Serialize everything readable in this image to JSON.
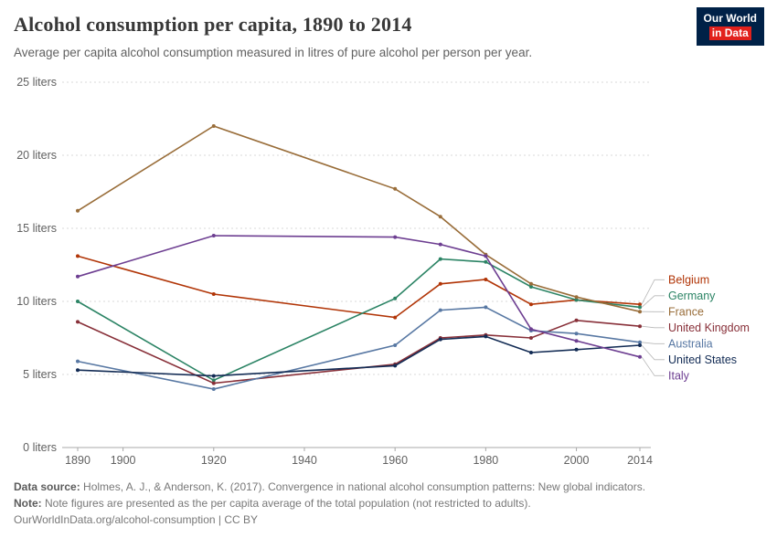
{
  "header": {
    "title": "Alcohol consumption per capita, 1890 to 2014",
    "subtitle": "Average per capita alcohol consumption measured in litres of pure alcohol per person per year."
  },
  "logo": {
    "line1": "Our World",
    "line2": "in Data",
    "bg_color": "#002147",
    "accent_color": "#E2211C"
  },
  "chart_data": {
    "type": "line",
    "xlabel": "",
    "ylabel": "liters",
    "xlim": [
      1890,
      2014
    ],
    "ylim": [
      0,
      25
    ],
    "grid": "dashed-horizontal",
    "legend_position": "right",
    "x_ticks": [
      1890,
      1900,
      1920,
      1940,
      1960,
      1980,
      2000,
      2014
    ],
    "y_ticks": [
      {
        "value": 0,
        "label": "0 liters"
      },
      {
        "value": 5,
        "label": "5 liters"
      },
      {
        "value": 10,
        "label": "10 liters"
      },
      {
        "value": 15,
        "label": "15 liters"
      },
      {
        "value": 20,
        "label": "20 liters"
      },
      {
        "value": 25,
        "label": "25 liters"
      }
    ],
    "years": [
      1890,
      1920,
      1960,
      1970,
      1980,
      1990,
      2000,
      2014
    ],
    "series": [
      {
        "name": "Belgium",
        "color": "#B13507",
        "values": [
          13.1,
          10.5,
          8.9,
          11.2,
          11.5,
          9.8,
          10.1,
          9.8
        ]
      },
      {
        "name": "Germany",
        "color": "#2C8465",
        "values": [
          10.0,
          4.6,
          10.2,
          12.9,
          12.7,
          11.0,
          10.1,
          9.6
        ]
      },
      {
        "name": "France",
        "color": "#996D39",
        "values": [
          16.2,
          22.0,
          17.7,
          15.8,
          13.2,
          11.2,
          10.3,
          9.3
        ]
      },
      {
        "name": "United Kingdom",
        "color": "#883039",
        "values": [
          8.6,
          4.4,
          5.7,
          7.5,
          7.7,
          7.5,
          8.7,
          8.3
        ]
      },
      {
        "name": "Australia",
        "color": "#5878A3",
        "values": [
          5.9,
          4.0,
          7.0,
          9.4,
          9.6,
          8.0,
          7.8,
          7.2
        ]
      },
      {
        "name": "United States",
        "color": "#122B54",
        "values": [
          5.3,
          4.9,
          5.6,
          7.4,
          7.6,
          6.5,
          6.7,
          7.0
        ]
      },
      {
        "name": "Italy",
        "color": "#6D3E91",
        "values": [
          11.7,
          14.5,
          14.4,
          13.9,
          13.1,
          8.1,
          7.3,
          6.2
        ]
      }
    ]
  },
  "footer": {
    "source_label": "Data source:",
    "source_text": " Holmes, A. J., & Anderson, K. (2017). Convergence in national alcohol consumption patterns: New global indicators.",
    "note_label": "Note:",
    "note_text": " Note figures are presented as the per capita average of the total population (not restricted to adults).",
    "link": "OurWorldInData.org/alcohol-consumption | CC BY"
  }
}
